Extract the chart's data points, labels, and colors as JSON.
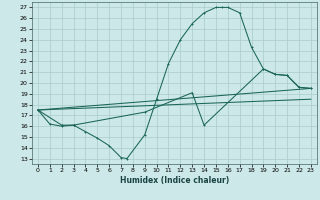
{
  "title": "",
  "xlabel": "Humidex (Indice chaleur)",
  "bg_color": "#cde8e8",
  "grid_color": "#aacccc",
  "line_color": "#1a6655",
  "xlim": [
    -0.5,
    23.5
  ],
  "ylim": [
    12.5,
    27.5
  ],
  "yticks": [
    13,
    14,
    15,
    16,
    17,
    18,
    19,
    20,
    21,
    22,
    23,
    24,
    25,
    26,
    27
  ],
  "xticks": [
    0,
    1,
    2,
    3,
    4,
    5,
    6,
    7,
    8,
    9,
    10,
    11,
    12,
    13,
    14,
    15,
    16,
    17,
    18,
    19,
    20,
    21,
    22,
    23
  ],
  "line1_x": [
    0,
    1,
    2,
    3,
    4,
    5,
    6,
    7,
    7.5,
    9,
    10,
    11,
    12,
    13,
    14,
    15,
    15.5,
    16,
    17,
    18,
    19,
    20,
    21,
    22,
    23
  ],
  "line1_y": [
    17.5,
    16.2,
    16.0,
    16.1,
    15.5,
    14.9,
    14.2,
    13.1,
    13.0,
    15.2,
    18.5,
    21.8,
    24.0,
    25.5,
    26.5,
    27.0,
    27.0,
    27.0,
    26.5,
    23.3,
    21.3,
    20.8,
    20.7,
    19.6,
    19.5
  ],
  "line2_x": [
    0,
    23
  ],
  "line2_y": [
    17.5,
    19.5
  ],
  "line3_x": [
    0,
    23
  ],
  "line3_y": [
    17.5,
    18.5
  ],
  "line4_x": [
    0,
    2,
    3,
    9,
    13,
    14,
    19,
    20,
    21,
    22,
    23
  ],
  "line4_y": [
    17.5,
    16.1,
    16.1,
    17.3,
    19.1,
    16.1,
    21.3,
    20.8,
    20.7,
    19.6,
    19.5
  ]
}
